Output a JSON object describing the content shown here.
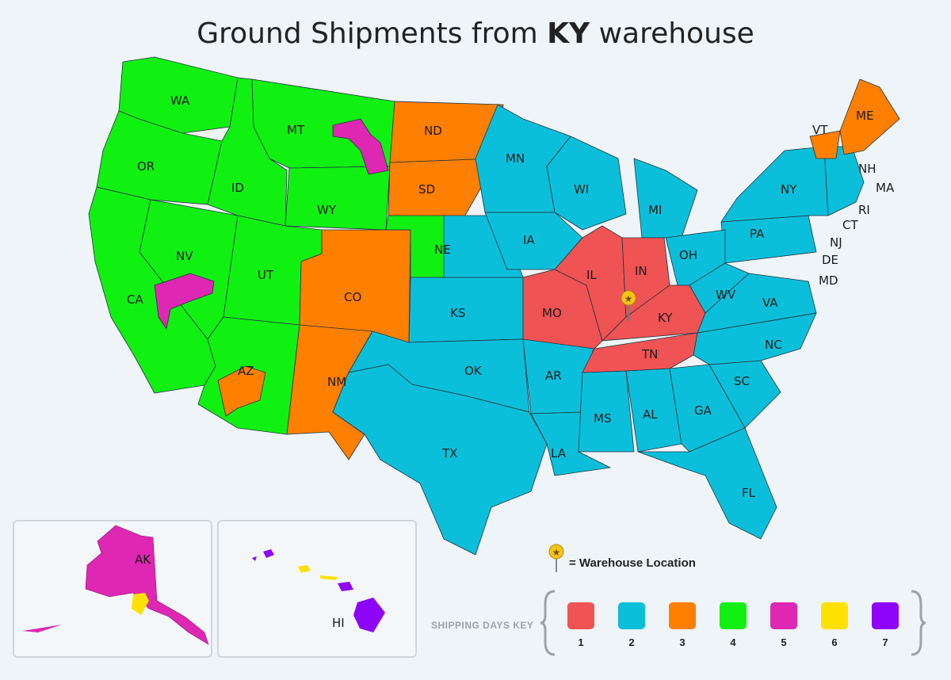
{
  "title": {
    "prefix": "Ground Shipments from ",
    "bold": "KY",
    "suffix": " warehouse"
  },
  "colors": {
    "1": "#f05353",
    "2": "#0bbfda",
    "3": "#ff7f00",
    "4": "#11f111",
    "5": "#de27b2",
    "6": "#ffe100",
    "7": "#8e04f8"
  },
  "states": {
    "WA": "WA",
    "OR": "OR",
    "CA": "CA",
    "NV": "NV",
    "ID": "ID",
    "MT": "MT",
    "WY": "WY",
    "UT": "UT",
    "AZ": "AZ",
    "CO": "CO",
    "NM": "NM",
    "ND": "ND",
    "SD": "SD",
    "NE": "NE",
    "KS": "KS",
    "OK": "OK",
    "TX": "TX",
    "MN": "MN",
    "IA": "IA",
    "MO": "MO",
    "AR": "AR",
    "LA": "LA",
    "WI": "WI",
    "IL": "IL",
    "MS": "MS",
    "MI": "MI",
    "IN": "IN",
    "KY": "KY",
    "TN": "TN",
    "AL": "AL",
    "OH": "OH",
    "GA": "GA",
    "FL": "FL",
    "SC": "SC",
    "NC": "NC",
    "VA": "VA",
    "WV": "WV",
    "PA": "PA",
    "NY": "NY",
    "VT": "VT",
    "ME": "ME",
    "NH": "NH",
    "MA": "MA",
    "RI": "RI",
    "CT": "CT",
    "NJ": "NJ",
    "DE": "DE",
    "MD": "MD",
    "AK": "AK",
    "HI": "HI"
  },
  "legend": {
    "warehouse_label": "= Warehouse Location",
    "key_title": "SHIPPING DAYS KEY",
    "days": [
      "1",
      "2",
      "3",
      "4",
      "5",
      "6",
      "7"
    ]
  }
}
